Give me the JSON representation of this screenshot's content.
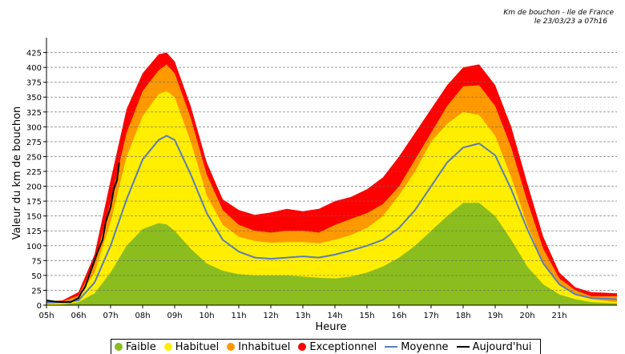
{
  "header": {
    "title": "Km de bouchon - Ile de France",
    "subtitle": "le 23/03/23 a 07h16"
  },
  "chart_data": {
    "type": "area",
    "xlabel": "Heure",
    "ylabel": "Valeur du  km de bouchon",
    "ylim": [
      0,
      450
    ],
    "xlim": [
      5,
      22.8
    ],
    "grid": "horizontal dashed",
    "legend_placement": "bottom",
    "xticks": [
      "05h",
      "06h",
      "07h",
      "08h",
      "09h",
      "10h",
      "11h",
      "12h",
      "13h",
      "14h",
      "15h",
      "16h",
      "17h",
      "18h",
      "19h",
      "20h",
      "21h"
    ],
    "yticks": [
      0,
      25,
      50,
      75,
      100,
      125,
      150,
      175,
      200,
      225,
      250,
      275,
      300,
      325,
      350,
      375,
      400,
      425
    ],
    "x": [
      5,
      5.5,
      6,
      6.5,
      7,
      7.5,
      8,
      8.5,
      8.75,
      9,
      9.5,
      10,
      10.5,
      11,
      11.5,
      12,
      12.5,
      13,
      13.5,
      14,
      14.5,
      15,
      15.5,
      16,
      16.5,
      17,
      17.5,
      18,
      18.5,
      19,
      19.5,
      20,
      20.5,
      21,
      21.5,
      22,
      22.8
    ],
    "series": [
      {
        "name": "Faible",
        "color": "#8cbd1e",
        "values": [
          0,
          1,
          5,
          20,
          55,
          100,
          128,
          138,
          136,
          125,
          95,
          70,
          58,
          52,
          50,
          50,
          50,
          48,
          46,
          45,
          48,
          55,
          65,
          80,
          100,
          125,
          150,
          172,
          172,
          150,
          110,
          65,
          35,
          18,
          10,
          5,
          3
        ]
      },
      {
        "name": "Habituel",
        "color": "#ffee00",
        "values": [
          3,
          4,
          12,
          55,
          140,
          250,
          318,
          355,
          360,
          350,
          275,
          185,
          135,
          115,
          108,
          105,
          106,
          106,
          104,
          110,
          118,
          130,
          150,
          185,
          225,
          275,
          305,
          325,
          320,
          285,
          215,
          135,
          70,
          35,
          18,
          10,
          5
        ]
      },
      {
        "name": "Inhabituel",
        "color": "#ff9900",
        "values": [
          4,
          6,
          16,
          70,
          175,
          290,
          360,
          395,
          405,
          390,
          315,
          220,
          160,
          135,
          125,
          122,
          125,
          125,
          122,
          135,
          145,
          155,
          170,
          200,
          245,
          290,
          335,
          368,
          370,
          335,
          265,
          175,
          95,
          45,
          25,
          15,
          15
        ]
      },
      {
        "name": "Exceptionnel",
        "color": "#ff0000",
        "values": [
          6,
          8,
          22,
          85,
          210,
          330,
          390,
          422,
          425,
          410,
          335,
          240,
          178,
          160,
          152,
          156,
          162,
          158,
          162,
          175,
          182,
          195,
          215,
          250,
          290,
          330,
          370,
          400,
          405,
          370,
          300,
          205,
          115,
          55,
          30,
          22,
          20
        ]
      },
      {
        "name": "Moyenne",
        "color": "#5b7db8",
        "line": true,
        "values": [
          4,
          5,
          8,
          38,
          100,
          178,
          245,
          278,
          285,
          278,
          220,
          155,
          110,
          90,
          80,
          78,
          80,
          82,
          80,
          85,
          92,
          100,
          110,
          130,
          160,
          200,
          240,
          265,
          272,
          252,
          195,
          128,
          70,
          35,
          18,
          12,
          10
        ]
      },
      {
        "name": "Aujourd'hui",
        "color": "#000000",
        "line": true,
        "x": [
          5,
          5.25,
          5.5,
          5.75,
          6,
          6.1,
          6.2,
          6.3,
          6.4,
          6.5,
          6.6,
          6.75,
          6.85,
          7,
          7.1,
          7.2,
          7.27
        ],
        "values": [
          8,
          6,
          5,
          5,
          12,
          22,
          30,
          45,
          60,
          75,
          90,
          110,
          140,
          165,
          195,
          210,
          240
        ]
      }
    ]
  }
}
